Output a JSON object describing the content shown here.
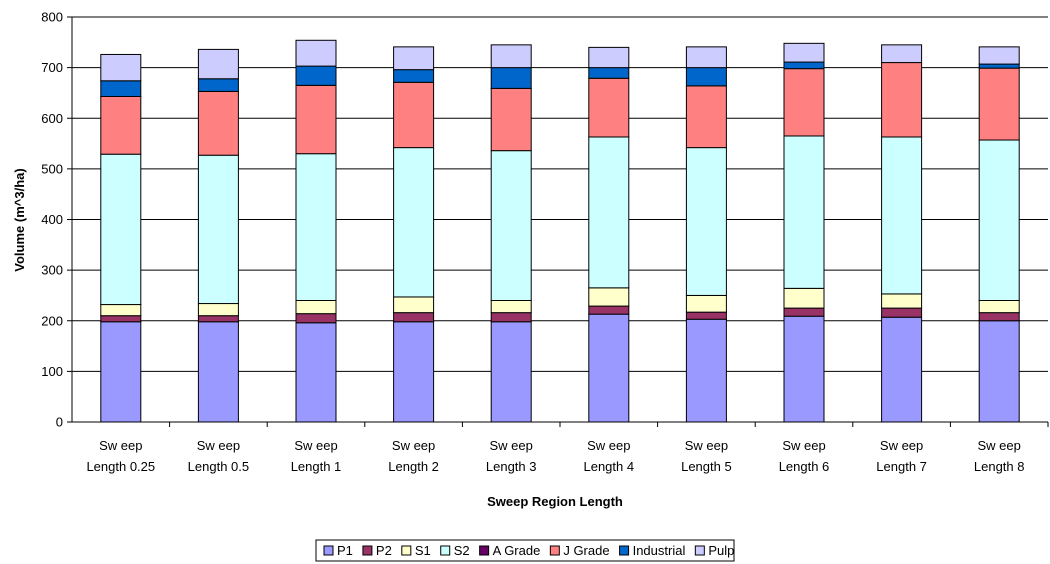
{
  "chart_data": {
    "type": "bar",
    "stacked": true,
    "title": "",
    "xlabel": "Sweep Region Length",
    "ylabel": "Volume (m^3/ha)",
    "ylim": [
      0,
      800
    ],
    "yticks": [
      0,
      100,
      200,
      300,
      400,
      500,
      600,
      700,
      800
    ],
    "grid": true,
    "legend_position": "bottom",
    "categories": [
      [
        "Sw eep",
        "Length 0.25"
      ],
      [
        "Sw eep",
        "Length 0.5"
      ],
      [
        "Sw eep",
        "Length 1"
      ],
      [
        "Sw eep",
        "Length 2"
      ],
      [
        "Sw eep",
        "Length 3"
      ],
      [
        "Sw eep",
        "Length 4"
      ],
      [
        "Sw eep",
        "Length 5"
      ],
      [
        "Sw eep",
        "Length 6"
      ],
      [
        "Sw eep",
        "Length 7"
      ],
      [
        "Sw eep",
        "Length 8"
      ]
    ],
    "series": [
      {
        "name": "P1",
        "color": "#9999ff",
        "values": [
          198,
          198,
          196,
          198,
          198,
          213,
          203,
          209,
          207,
          200
        ]
      },
      {
        "name": "P2",
        "color": "#993366",
        "values": [
          12,
          12,
          18,
          18,
          18,
          16,
          14,
          16,
          18,
          16
        ]
      },
      {
        "name": "S1",
        "color": "#ffffcc",
        "values": [
          22,
          24,
          26,
          31,
          24,
          36,
          33,
          39,
          28,
          24
        ]
      },
      {
        "name": "S2",
        "color": "#ccffff",
        "values": [
          297,
          293,
          290,
          295,
          296,
          298,
          292,
          301,
          310,
          317
        ]
      },
      {
        "name": "A Grade",
        "color": "#660066",
        "values": [
          0,
          0,
          0,
          0,
          0,
          0,
          0,
          0,
          0,
          0
        ]
      },
      {
        "name": "J Grade",
        "color": "#ff8080",
        "values": [
          114,
          126,
          135,
          129,
          123,
          116,
          122,
          133,
          147,
          142
        ]
      },
      {
        "name": "Industrial",
        "color": "#0066cc",
        "values": [
          31,
          25,
          38,
          25,
          41,
          21,
          36,
          13,
          0,
          8
        ]
      },
      {
        "name": "Pulp",
        "color": "#ccccff",
        "values": [
          52,
          58,
          51,
          45,
          45,
          40,
          41,
          37,
          35,
          34
        ]
      }
    ]
  }
}
